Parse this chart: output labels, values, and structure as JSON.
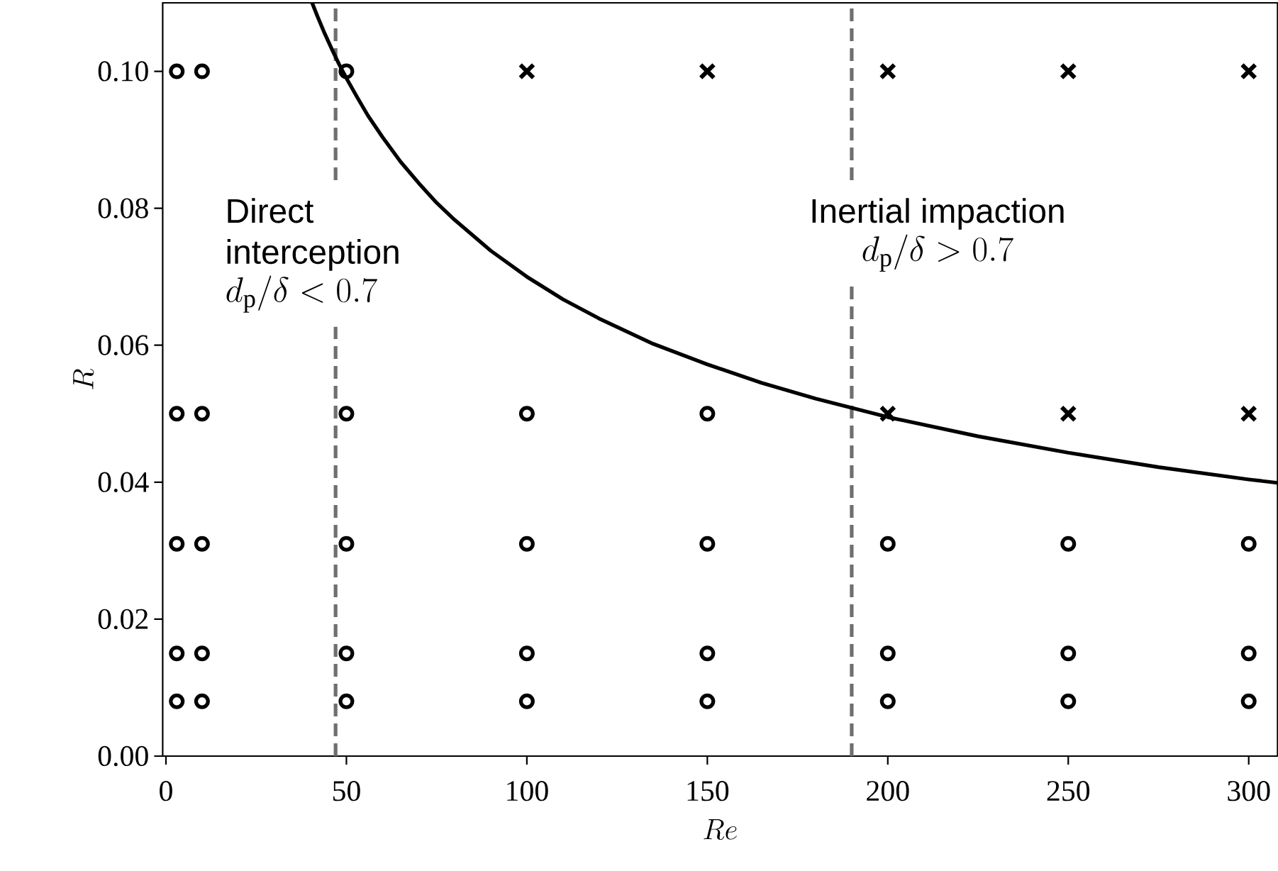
{
  "chart_data": {
    "type": "scatter",
    "xlabel": "Re",
    "ylabel": "R",
    "xlim": [
      -0.9,
      308
    ],
    "ylim": [
      0,
      0.11
    ],
    "xticks": [
      0,
      50,
      100,
      150,
      200,
      250,
      300
    ],
    "yticks": [
      {
        "value": 0,
        "label": "0.00"
      },
      {
        "value": 0.02,
        "label": "0.02"
      },
      {
        "value": 0.04,
        "label": "0.04"
      },
      {
        "value": 0.06,
        "label": "0.06"
      },
      {
        "value": 0.08,
        "label": "0.08"
      },
      {
        "value": 0.1,
        "label": "0.10"
      }
    ],
    "grid": false,
    "series": [
      {
        "marker": "circle",
        "color": "#000000",
        "x": [
          3,
          10,
          50,
          3,
          10,
          50,
          100,
          150,
          3,
          10,
          50,
          100,
          150,
          200,
          250,
          300,
          3,
          10,
          50,
          100,
          150,
          200,
          250,
          300,
          3,
          10,
          50,
          100,
          150,
          200,
          250,
          300
        ],
        "values": [
          0.1,
          0.1,
          0.1,
          0.05,
          0.05,
          0.05,
          0.05,
          0.05,
          0.031,
          0.031,
          0.031,
          0.031,
          0.031,
          0.031,
          0.031,
          0.031,
          0.015,
          0.015,
          0.015,
          0.015,
          0.015,
          0.015,
          0.015,
          0.015,
          0.008,
          0.008,
          0.008,
          0.008,
          0.008,
          0.008,
          0.008,
          0.008
        ]
      },
      {
        "marker": "cross",
        "color": "#000000",
        "x": [
          100,
          150,
          200,
          250,
          300,
          200,
          250,
          300
        ],
        "values": [
          0.1,
          0.1,
          0.1,
          0.1,
          0.1,
          0.05,
          0.05,
          0.05
        ]
      },
      {
        "type": "line",
        "marker": "none",
        "line_style": "solid",
        "color": "#000000",
        "x": [
          40.5,
          42,
          44,
          46,
          48,
          50,
          53,
          56,
          60,
          65,
          70,
          75,
          80,
          90,
          100,
          110,
          120,
          135,
          150,
          165,
          180,
          200,
          225,
          250,
          275,
          300,
          308
        ],
        "values": [
          0.11,
          0.108,
          0.1055,
          0.1032,
          0.101,
          0.099,
          0.0962,
          0.0935,
          0.0904,
          0.0868,
          0.0837,
          0.0808,
          0.0783,
          0.0738,
          0.07,
          0.0667,
          0.0639,
          0.0602,
          0.0572,
          0.0545,
          0.0522,
          0.0495,
          0.0467,
          0.0443,
          0.0422,
          0.0404,
          0.0399
        ]
      }
    ],
    "ref_lines": [
      {
        "axis": "x",
        "value": 47,
        "color": "#6f6f6f",
        "line_style": "dashed"
      },
      {
        "axis": "x",
        "value": 190,
        "color": "#6f6f6f",
        "line_style": "dashed"
      }
    ],
    "annotations": [
      "Direct interception",
      "d_{\\mathrm{p}}/\\delta < 0.7",
      "Inertial impaction",
      "d_{\\mathrm{p}}/\\delta > 0.7"
    ]
  }
}
